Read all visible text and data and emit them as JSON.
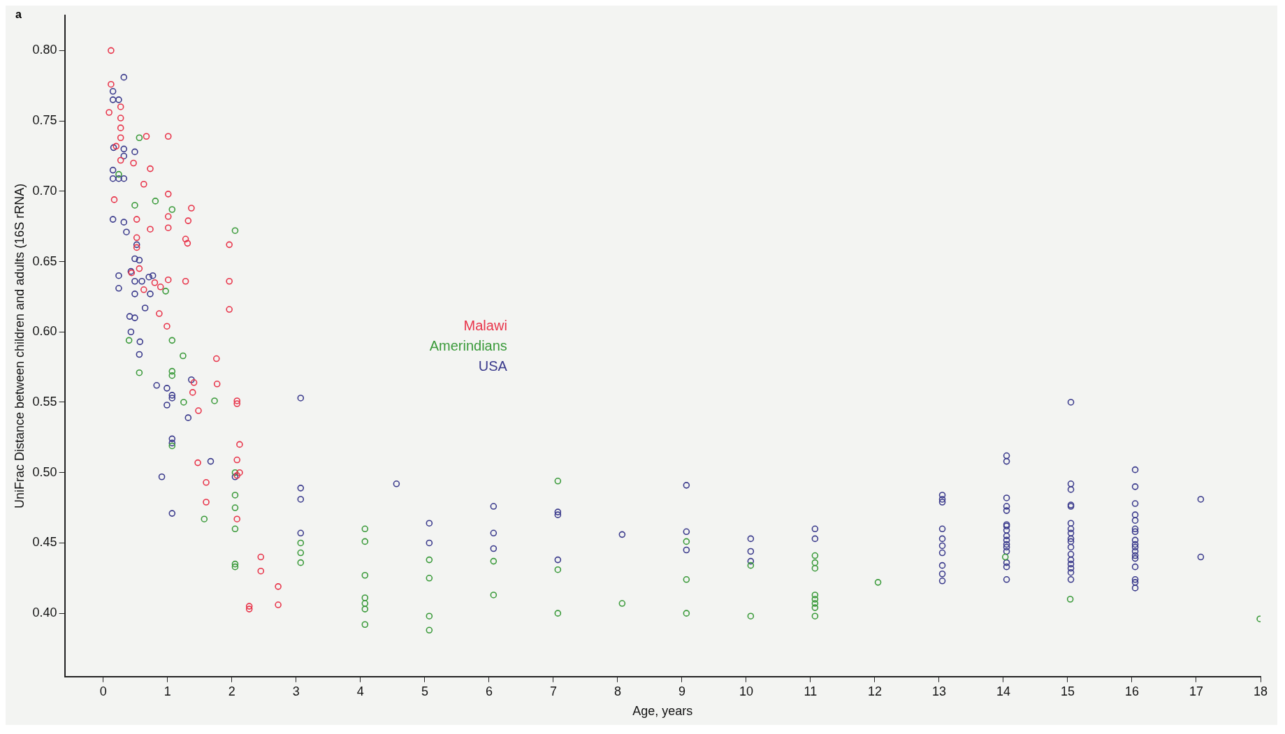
{
  "chart_data": {
    "type": "scatter",
    "xlabel": "Age, years",
    "ylabel": "UniFrac Distance between children and adults (16S rRNA)",
    "annotations": [
      "a"
    ],
    "xlim": [
      -0.6,
      18
    ],
    "xticks": [
      0,
      1,
      2,
      3,
      4,
      5,
      6,
      7,
      8,
      9,
      10,
      11,
      12,
      13,
      14,
      15,
      16,
      17,
      18
    ],
    "ylim": [
      0.355,
      0.825
    ],
    "yticks": [
      {
        "value": 0.4,
        "label": "0.40"
      },
      {
        "value": 0.45,
        "label": "0.45"
      },
      {
        "value": 0.5,
        "label": "0.50"
      },
      {
        "value": 0.55,
        "label": "0.55"
      },
      {
        "value": 0.6,
        "label": "0.60"
      },
      {
        "value": 0.65,
        "label": "0.65"
      },
      {
        "value": 0.7,
        "label": "0.70"
      },
      {
        "value": 0.75,
        "label": "0.75"
      },
      {
        "value": 0.8,
        "label": "0.80"
      }
    ],
    "grid": false,
    "legend": "left",
    "marker": "circle",
    "series": [
      {
        "name": "Malawi",
        "color": "#e8344a",
        "x": [
          0.12,
          0.12,
          0.09,
          0.27,
          0.27,
          0.27,
          0.27,
          0.67,
          1.01,
          0.2,
          0.27,
          0.47,
          0.73,
          0.63,
          0.17,
          1.01,
          1.37,
          0.52,
          1.01,
          1.32,
          0.73,
          1.01,
          1.28,
          1.31,
          1.96,
          1.96,
          1.96,
          0.52,
          0.52,
          0.44,
          0.56,
          0.63,
          0.89,
          0.8,
          1.28,
          1.01,
          0.87,
          0.99,
          1.07,
          1.76,
          1.41,
          1.39,
          1.77,
          1.48,
          2.08,
          2.08,
          1.47,
          2.12,
          2.08,
          2.12,
          2.08,
          1.6,
          1.6,
          2.08,
          2.45,
          2.45,
          2.27,
          2.27,
          2.72,
          2.72
        ],
        "values": [
          0.8,
          0.776,
          0.756,
          0.76,
          0.752,
          0.745,
          0.738,
          0.739,
          0.739,
          0.732,
          0.722,
          0.72,
          0.716,
          0.705,
          0.694,
          0.698,
          0.688,
          0.68,
          0.682,
          0.679,
          0.673,
          0.674,
          0.666,
          0.663,
          0.662,
          0.636,
          0.616,
          0.667,
          0.66,
          0.642,
          0.645,
          0.63,
          0.632,
          0.635,
          0.636,
          0.637,
          0.613,
          0.604,
          null,
          0.581,
          0.564,
          0.557,
          0.563,
          0.544,
          0.551,
          0.549,
          0.507,
          0.52,
          0.509,
          0.5,
          0.498,
          0.493,
          0.479,
          0.467,
          0.44,
          0.43,
          0.405,
          0.403,
          0.419,
          0.406
        ]
      },
      {
        "name": "Amerindians",
        "color": "#3a9a3a",
        "x": [
          0.56,
          0.24,
          0.49,
          0.81,
          1.07,
          2.05,
          0.97,
          0.4,
          1.07,
          1.24,
          0.56,
          1.07,
          1.07,
          1.25,
          1.73,
          1.07,
          1.57,
          2.05,
          2.05,
          2.05,
          2.05,
          2.05,
          2.05,
          3.07,
          3.07,
          3.07,
          4.07,
          4.07,
          4.07,
          4.07,
          4.07,
          4.07,
          4.07,
          5.07,
          5.07,
          5.07,
          5.07,
          6.07,
          6.07,
          7.07,
          7.07,
          7.07,
          8.07,
          9.07,
          9.07,
          9.07,
          10.07,
          10.07,
          11.07,
          11.07,
          11.07,
          11.07,
          11.07,
          11.07,
          11.07,
          11.07,
          12.05,
          14.03,
          15.04,
          17.99
        ],
        "values": [
          0.738,
          0.712,
          0.69,
          0.693,
          0.687,
          0.672,
          0.629,
          0.594,
          0.594,
          0.583,
          0.571,
          0.572,
          0.569,
          0.55,
          0.551,
          0.519,
          0.467,
          0.5,
          0.484,
          0.475,
          0.46,
          0.435,
          0.433,
          0.436,
          0.443,
          0.45,
          0.46,
          0.451,
          0.427,
          0.411,
          0.407,
          0.403,
          0.392,
          0.438,
          0.425,
          0.398,
          0.388,
          0.437,
          0.413,
          0.494,
          0.431,
          0.4,
          0.407,
          0.451,
          0.424,
          0.4,
          0.434,
          0.398,
          0.441,
          0.436,
          0.432,
          0.413,
          0.41,
          0.407,
          0.404,
          0.398,
          0.422,
          0.44,
          0.41,
          0.396
        ]
      },
      {
        "name": "USA",
        "color": "#3a3a8c",
        "x": [
          0.32,
          0.15,
          0.15,
          0.24,
          0.16,
          0.32,
          0.49,
          0.32,
          0.15,
          0.15,
          0.32,
          0.24,
          0.15,
          0.32,
          0.36,
          0.52,
          0.24,
          0.24,
          0.43,
          0.49,
          0.56,
          0.49,
          0.6,
          0.71,
          0.77,
          0.49,
          0.73,
          0.65,
          0.41,
          0.49,
          0.43,
          0.57,
          0.56,
          0.83,
          0.99,
          1.07,
          1.07,
          0.99,
          1.32,
          1.37,
          1.67,
          1.07,
          1.07,
          0.91,
          1.07,
          2.05,
          3.07,
          3.07,
          3.07,
          3.07,
          4.56,
          5.07,
          5.07,
          6.07,
          6.07,
          6.07,
          7.07,
          7.07,
          7.07,
          8.07,
          9.07,
          9.07,
          9.07,
          10.07,
          10.07,
          10.07,
          11.07,
          11.07,
          13.05,
          13.05,
          13.05,
          13.05,
          13.05,
          13.05,
          13.05,
          13.05,
          13.05,
          13.05,
          14.05,
          14.05,
          14.05,
          14.05,
          14.05,
          14.05,
          14.05,
          14.05,
          14.05,
          14.05,
          14.05,
          14.05,
          14.05,
          14.05,
          14.05,
          14.05,
          15.05,
          15.05,
          15.05,
          15.05,
          15.05,
          15.05,
          15.05,
          15.05,
          15.05,
          15.05,
          15.05,
          15.05,
          15.05,
          15.05,
          15.05,
          15.05,
          15.05,
          16.05,
          16.05,
          16.05,
          16.05,
          16.05,
          16.05,
          16.05,
          16.05,
          16.05,
          16.05,
          16.05,
          16.05,
          16.05,
          16.05,
          16.05,
          16.05,
          16.05,
          17.07,
          17.07
        ],
        "values": [
          0.781,
          0.771,
          0.765,
          0.765,
          0.731,
          0.725,
          0.728,
          0.73,
          0.715,
          0.709,
          0.709,
          0.709,
          0.68,
          0.678,
          0.671,
          0.662,
          0.64,
          0.631,
          0.643,
          0.652,
          0.651,
          0.636,
          0.636,
          0.639,
          0.64,
          0.627,
          0.627,
          0.617,
          0.611,
          0.61,
          0.6,
          0.593,
          0.584,
          0.562,
          0.56,
          0.555,
          0.553,
          0.548,
          0.539,
          0.566,
          0.508,
          0.524,
          0.521,
          0.497,
          0.471,
          0.497,
          0.553,
          0.489,
          0.481,
          0.457,
          0.492,
          0.464,
          0.45,
          0.476,
          0.457,
          0.446,
          0.472,
          0.47,
          0.438,
          0.456,
          0.491,
          0.458,
          0.445,
          0.453,
          0.444,
          0.437,
          0.46,
          0.453,
          0.484,
          0.481,
          0.479,
          0.46,
          0.453,
          0.448,
          0.443,
          0.434,
          0.428,
          0.423,
          0.512,
          0.508,
          0.482,
          0.476,
          0.473,
          0.463,
          0.462,
          0.459,
          0.455,
          0.452,
          0.449,
          0.447,
          0.444,
          0.436,
          0.433,
          0.424,
          0.55,
          0.492,
          0.488,
          0.477,
          0.476,
          0.464,
          0.46,
          0.457,
          0.453,
          0.451,
          0.447,
          0.442,
          0.438,
          0.435,
          0.432,
          0.429,
          0.424,
          0.502,
          0.49,
          0.478,
          0.47,
          0.466,
          0.46,
          0.458,
          0.452,
          0.449,
          0.447,
          0.444,
          0.441,
          0.439,
          0.433,
          0.424,
          0.422,
          0.418,
          0.481,
          0.44
        ]
      }
    ]
  }
}
